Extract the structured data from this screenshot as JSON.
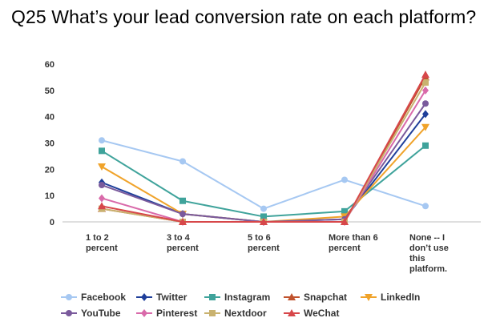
{
  "chart_data": {
    "type": "line",
    "title": "Q25 What’s your lead conversion rate on each platform?",
    "xlabel": "",
    "ylabel": "",
    "ylim": [
      0,
      60
    ],
    "yticks": [
      0,
      10,
      20,
      30,
      40,
      50,
      60
    ],
    "grid": false,
    "legend_position": "bottom",
    "categories": [
      [
        "1 to 2",
        "percent"
      ],
      [
        "3 to 4",
        "percent"
      ],
      [
        "5 to 6",
        "percent"
      ],
      [
        "More than 6",
        "percent"
      ],
      [
        "None -- I",
        "don’t use",
        "this",
        "platform."
      ]
    ],
    "series": [
      {
        "name": "Facebook",
        "color": "#a6c8f2",
        "marker": "circle",
        "values": [
          31,
          23,
          5,
          16,
          6
        ]
      },
      {
        "name": "Twitter",
        "color": "#1f3f9a",
        "marker": "diamond",
        "values": [
          15,
          3,
          0,
          1,
          41
        ]
      },
      {
        "name": "Instagram",
        "color": "#3fa39b",
        "marker": "square",
        "values": [
          27,
          8,
          2,
          4,
          29
        ]
      },
      {
        "name": "Snapchat",
        "color": "#c0522d",
        "marker": "triangle",
        "values": [
          5,
          0,
          0,
          0,
          55
        ]
      },
      {
        "name": "LinkedIn",
        "color": "#f0a32a",
        "marker": "tridown",
        "values": [
          21,
          3,
          0,
          2,
          36
        ]
      },
      {
        "name": "YouTube",
        "color": "#7a5a9c",
        "marker": "circle",
        "values": [
          14,
          3,
          0,
          1,
          45
        ]
      },
      {
        "name": "Pinterest",
        "color": "#d96aaa",
        "marker": "diamond",
        "values": [
          9,
          0,
          0,
          0,
          50
        ]
      },
      {
        "name": "Nextdoor",
        "color": "#c9b26f",
        "marker": "square",
        "values": [
          5,
          0,
          0,
          0,
          53
        ]
      },
      {
        "name": "WeChat",
        "color": "#d7474a",
        "marker": "triangle",
        "values": [
          6,
          0,
          0,
          0,
          56
        ]
      }
    ]
  }
}
